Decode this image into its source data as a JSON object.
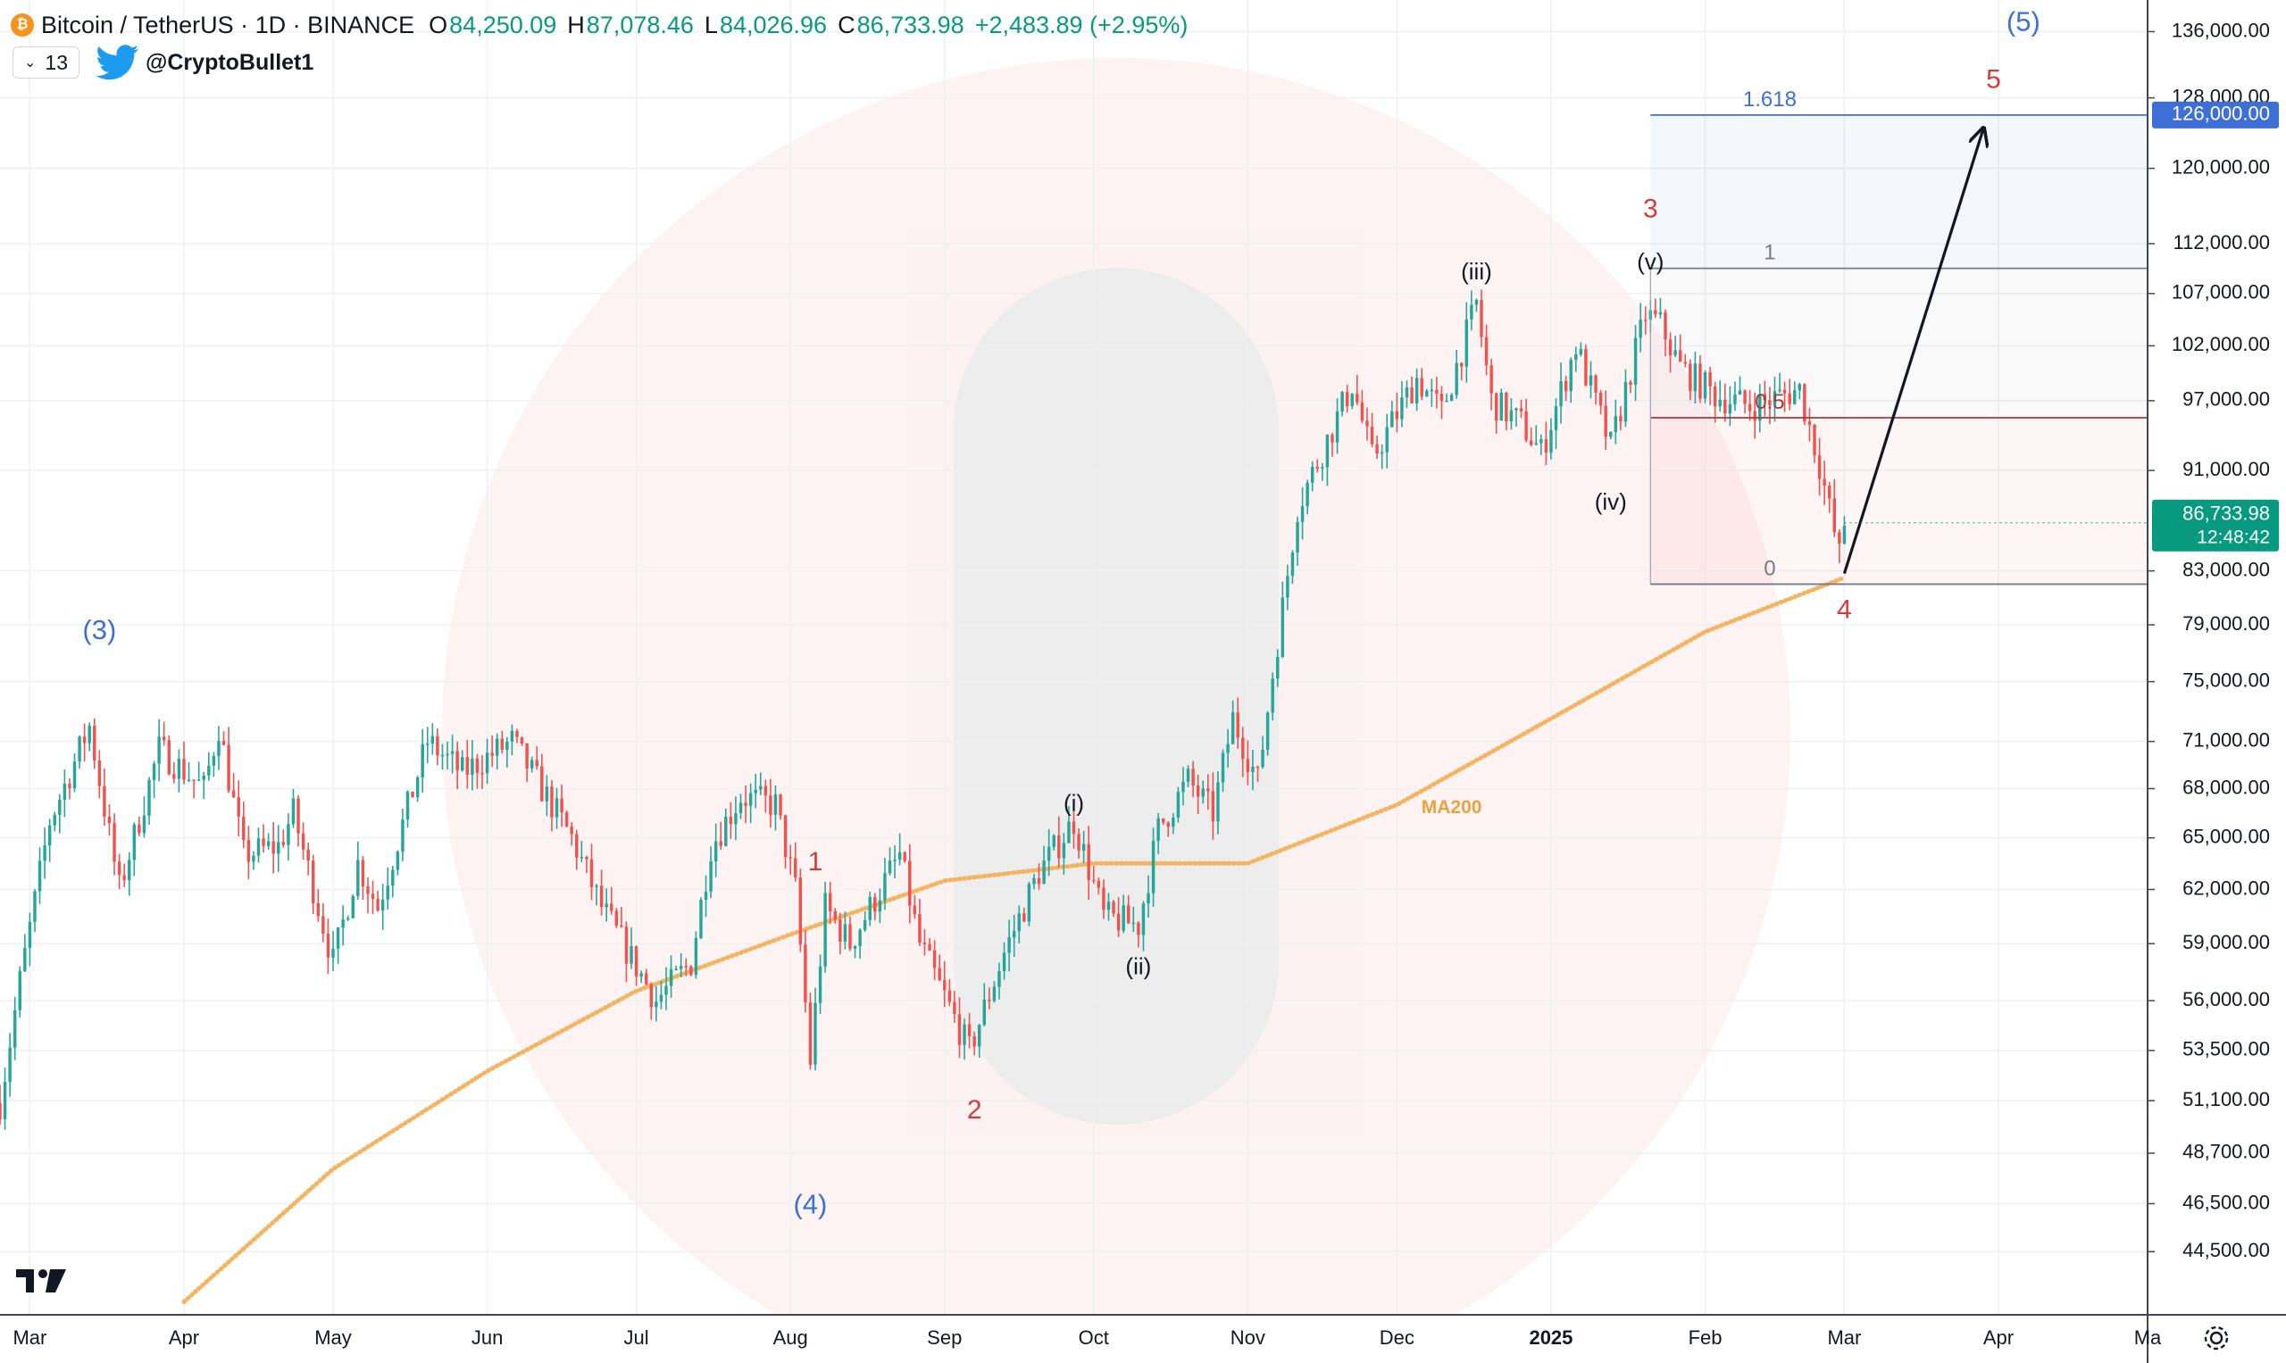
{
  "header": {
    "symbol": "Bitcoin / TetherUS · 1D · BINANCE",
    "open_label": "O",
    "open": "84,250.09",
    "high_label": "H",
    "high": "87,078.46",
    "low_label": "L",
    "low": "84,026.96",
    "close_label": "C",
    "close": "86,733.98",
    "change": "+2,483.89 (+2.95%)",
    "indicator_count": "13",
    "author": "@CryptoBullet1"
  },
  "colors": {
    "up": "#26a69a",
    "down": "#ef5350",
    "ma": "#f3b563",
    "blue": "#3d6fd4",
    "red": "#d43c3c",
    "text": "#131722"
  },
  "chart_data": {
    "type": "candlestick",
    "title": "Bitcoin / TetherUS · 1D · BINANCE",
    "y_scale": "log",
    "ylim": [
      42000,
      140000
    ],
    "price_ticks": [
      136000,
      128000,
      120000,
      112000,
      107000,
      102000,
      97000,
      91000,
      83000,
      79000,
      75000,
      71000,
      68000,
      65000,
      62000,
      59000,
      56000,
      53500,
      51100,
      48700,
      46500,
      44500
    ],
    "price_tick_labels": [
      "136,000.00",
      "128,000.00",
      "120,000.00",
      "112,000.00",
      "107,000.00",
      "102,000.00",
      "97,000.00",
      "91,000.00",
      "83,000.00",
      "79,000.00",
      "75,000.00",
      "71,000.00",
      "68,000.00",
      "65,000.00",
      "62,000.00",
      "59,000.00",
      "56,000.00",
      "53,500.00",
      "51,100.00",
      "48,700.00",
      "46,500.00",
      "44,500.00"
    ],
    "x_start": "2024-02-24",
    "x_end": "2025-05-01",
    "x_ticks": [
      {
        "label": "Mar",
        "date": "2024-03-01",
        "bold": false
      },
      {
        "label": "Apr",
        "date": "2024-04-01",
        "bold": false
      },
      {
        "label": "May",
        "date": "2024-05-01",
        "bold": false
      },
      {
        "label": "Jun",
        "date": "2024-06-01",
        "bold": false
      },
      {
        "label": "Jul",
        "date": "2024-07-01",
        "bold": false
      },
      {
        "label": "Aug",
        "date": "2024-08-01",
        "bold": false
      },
      {
        "label": "Sep",
        "date": "2024-09-01",
        "bold": false
      },
      {
        "label": "Oct",
        "date": "2024-10-01",
        "bold": false
      },
      {
        "label": "Nov",
        "date": "2024-11-01",
        "bold": false
      },
      {
        "label": "Dec",
        "date": "2024-12-01",
        "bold": false
      },
      {
        "label": "2025",
        "date": "2025-01-01",
        "bold": true
      },
      {
        "label": "Feb",
        "date": "2025-02-01",
        "bold": false
      },
      {
        "label": "Mar",
        "date": "2025-03-01",
        "bold": false
      },
      {
        "label": "Apr",
        "date": "2025-04-01",
        "bold": false
      },
      {
        "label": "Ma",
        "date": "2025-05-01",
        "bold": false
      }
    ],
    "price_path": [
      [
        "2024-02-24",
        51000
      ],
      [
        "2024-02-28",
        57000
      ],
      [
        "2024-03-05",
        66000
      ],
      [
        "2024-03-13",
        72000
      ],
      [
        "2024-03-19",
        62000
      ],
      [
        "2024-03-27",
        70500
      ],
      [
        "2024-04-05",
        68000
      ],
      [
        "2024-04-08",
        72000
      ],
      [
        "2024-04-13",
        64000
      ],
      [
        "2024-04-20",
        64500
      ],
      [
        "2024-04-23",
        66500
      ],
      [
        "2024-05-01",
        58000
      ],
      [
        "2024-05-06",
        63500
      ],
      [
        "2024-05-10",
        61000
      ],
      [
        "2024-05-20",
        71000
      ],
      [
        "2024-05-27",
        69000
      ],
      [
        "2024-06-06",
        71000
      ],
      [
        "2024-06-12",
        68000
      ],
      [
        "2024-06-18",
        65000
      ],
      [
        "2024-06-24",
        61000
      ],
      [
        "2024-07-05",
        56000
      ],
      [
        "2024-07-12",
        58000
      ],
      [
        "2024-07-16",
        64500
      ],
      [
        "2024-07-22",
        67500
      ],
      [
        "2024-07-29",
        67000
      ],
      [
        "2024-08-02",
        62000
      ],
      [
        "2024-08-05",
        53000
      ],
      [
        "2024-08-08",
        61000
      ],
      [
        "2024-08-13",
        59000
      ],
      [
        "2024-08-23",
        64000
      ],
      [
        "2024-08-27",
        59000
      ],
      [
        "2024-09-06",
        53500
      ],
      [
        "2024-09-13",
        58500
      ],
      [
        "2024-09-20",
        63000
      ],
      [
        "2024-09-27",
        66000
      ],
      [
        "2024-10-03",
        60500
      ],
      [
        "2024-10-10",
        60000
      ],
      [
        "2024-10-14",
        65500
      ],
      [
        "2024-10-20",
        68500
      ],
      [
        "2024-10-25",
        66500
      ],
      [
        "2024-10-29",
        72500
      ],
      [
        "2024-11-03",
        68500
      ],
      [
        "2024-11-06",
        75500
      ],
      [
        "2024-11-11",
        88000
      ],
      [
        "2024-11-22",
        98500
      ],
      [
        "2024-11-26",
        92000
      ],
      [
        "2024-12-05",
        99000
      ],
      [
        "2024-12-10",
        96000
      ],
      [
        "2024-12-17",
        106000
      ],
      [
        "2024-12-20",
        97000
      ],
      [
        "2024-12-26",
        95000
      ],
      [
        "2024-12-30",
        92500
      ],
      [
        "2025-01-06",
        102000
      ],
      [
        "2025-01-13",
        93000
      ],
      [
        "2025-01-20",
        105000
      ],
      [
        "2025-01-23",
        104000
      ],
      [
        "2025-01-27",
        100000
      ],
      [
        "2025-02-03",
        97500
      ],
      [
        "2025-02-10",
        96500
      ],
      [
        "2025-02-20",
        98000
      ],
      [
        "2025-02-24",
        91500
      ],
      [
        "2025-02-28",
        84200
      ],
      [
        "2025-03-01",
        86734
      ]
    ],
    "ma200": {
      "label": "MA200",
      "points": [
        [
          "2024-04-01",
          42500
        ],
        [
          "2024-05-01",
          48000
        ],
        [
          "2024-06-01",
          52500
        ],
        [
          "2024-07-01",
          56500
        ],
        [
          "2024-08-01",
          59500
        ],
        [
          "2024-09-01",
          62500
        ],
        [
          "2024-10-01",
          63500
        ],
        [
          "2024-11-01",
          63500
        ],
        [
          "2024-12-01",
          67000
        ],
        [
          "2025-01-01",
          72500
        ],
        [
          "2025-02-01",
          78500
        ],
        [
          "2025-03-01",
          82500
        ]
      ]
    },
    "fib_retracement": {
      "x_start": "2025-01-21",
      "levels": [
        {
          "ratio": "1.618",
          "price": 126000,
          "color": "#3d6fd4"
        },
        {
          "ratio": "1",
          "price": 109500,
          "color": "#787b86"
        },
        {
          "ratio": "0.5",
          "price": 95500,
          "color": "#a33a3a"
        },
        {
          "ratio": "0",
          "price": 82000,
          "color": "#787b86"
        }
      ]
    },
    "projection_arrow": {
      "from": [
        "2025-03-01",
        82800
      ],
      "to": [
        "2025-03-29",
        124500
      ]
    },
    "wave_labels": [
      {
        "text": "(3)",
        "date": "2024-03-15",
        "price": 78500,
        "color": "blue"
      },
      {
        "text": "(4)",
        "date": "2024-08-05",
        "price": 46400,
        "color": "blue"
      },
      {
        "text": "(5)",
        "date": "2025-04-06",
        "price": 137000,
        "color": "blue"
      },
      {
        "text": "1",
        "date": "2024-08-06",
        "price": 63500,
        "color": "red"
      },
      {
        "text": "2",
        "date": "2024-09-07",
        "price": 50600,
        "color": "red"
      },
      {
        "text": "3",
        "date": "2025-01-21",
        "price": 115500,
        "color": "red"
      },
      {
        "text": "4",
        "date": "2025-03-01",
        "price": 80000,
        "color": "red"
      },
      {
        "text": "5",
        "date": "2025-03-31",
        "price": 130000,
        "color": "red"
      },
      {
        "text": "(i)",
        "date": "2024-09-27",
        "price": 67000,
        "color": "black"
      },
      {
        "text": "(ii)",
        "date": "2024-10-10",
        "price": 57700,
        "color": "black"
      },
      {
        "text": "(iii)",
        "date": "2024-12-17",
        "price": 109000,
        "color": "black"
      },
      {
        "text": "(iv)",
        "date": "2025-01-13",
        "price": 88300,
        "color": "black"
      },
      {
        "text": "(v)",
        "date": "2025-01-21",
        "price": 110000,
        "color": "black"
      }
    ],
    "last_price": {
      "value": "86,733.98",
      "countdown": "12:48:42",
      "price": 86734
    },
    "target_price": {
      "value": "126,000.00",
      "price": 126000
    }
  }
}
